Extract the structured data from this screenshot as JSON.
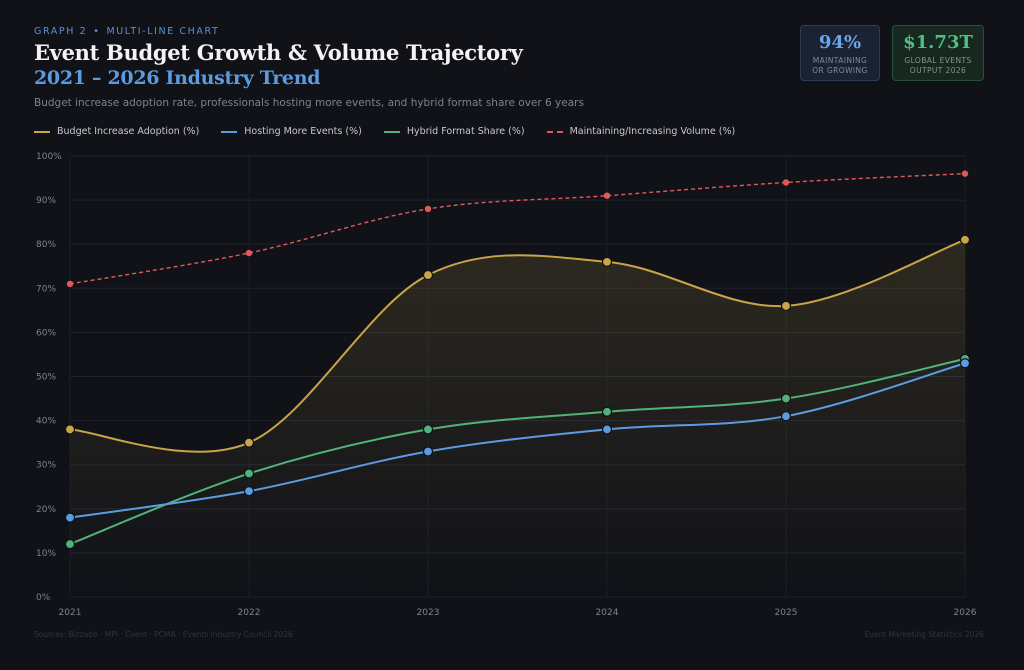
{
  "header": {
    "kicker_graph": "GRAPH 2",
    "kicker_dot": "•",
    "kicker_type": "MULTI-LINE CHART",
    "title": "Event Budget Growth & Volume Trajectory",
    "title_line2": "2021 – 2026 Industry Trend",
    "subtitle": "Budget increase adoption rate, professionals hosting more events, and hybrid format share over 6 years"
  },
  "kpis": [
    {
      "value": "94%",
      "label_line1": "MAINTAINING",
      "label_line2": "OR GROWING"
    },
    {
      "value": "$1.73T",
      "label_line1": "GLOBAL EVENTS",
      "label_line2": "OUTPUT 2026"
    }
  ],
  "footer": {
    "sources": "Sources: Bizzabo · MPI · Cvent · PCMA · Events Industry Council 2026",
    "brand": "Event Marketing Statistics 2026"
  },
  "chart_data": {
    "type": "line",
    "x": [
      "2021",
      "2022",
      "2023",
      "2024",
      "2025",
      "2026"
    ],
    "ylim": [
      0,
      100
    ],
    "yticks": [
      0,
      10,
      20,
      30,
      40,
      50,
      60,
      70,
      80,
      90,
      100
    ],
    "ytick_labels": [
      "0%",
      "10%",
      "20%",
      "30%",
      "40%",
      "50%",
      "60%",
      "70%",
      "80%",
      "90%",
      "100%"
    ],
    "grid": true,
    "legend_position": "top-left",
    "series": [
      {
        "name": "Budget Increase Adoption (%)",
        "values": [
          38,
          35,
          73,
          76,
          66,
          81
        ],
        "color": "#c9a54a",
        "style": "solid",
        "fill": true
      },
      {
        "name": "Hosting More Events (%)",
        "values": [
          18,
          24,
          33,
          38,
          41,
          53
        ],
        "color": "#5b9be0",
        "style": "solid",
        "fill": false
      },
      {
        "name": "Hybrid Format Share (%)",
        "values": [
          12,
          28,
          38,
          42,
          45,
          54
        ],
        "color": "#4fb37a",
        "style": "solid",
        "fill": false
      },
      {
        "name": "Maintaining/Increasing Volume (%)",
        "values": [
          71,
          78,
          88,
          91,
          94,
          96
        ],
        "color": "#e05a5a",
        "style": "dashed",
        "fill": false
      }
    ]
  }
}
